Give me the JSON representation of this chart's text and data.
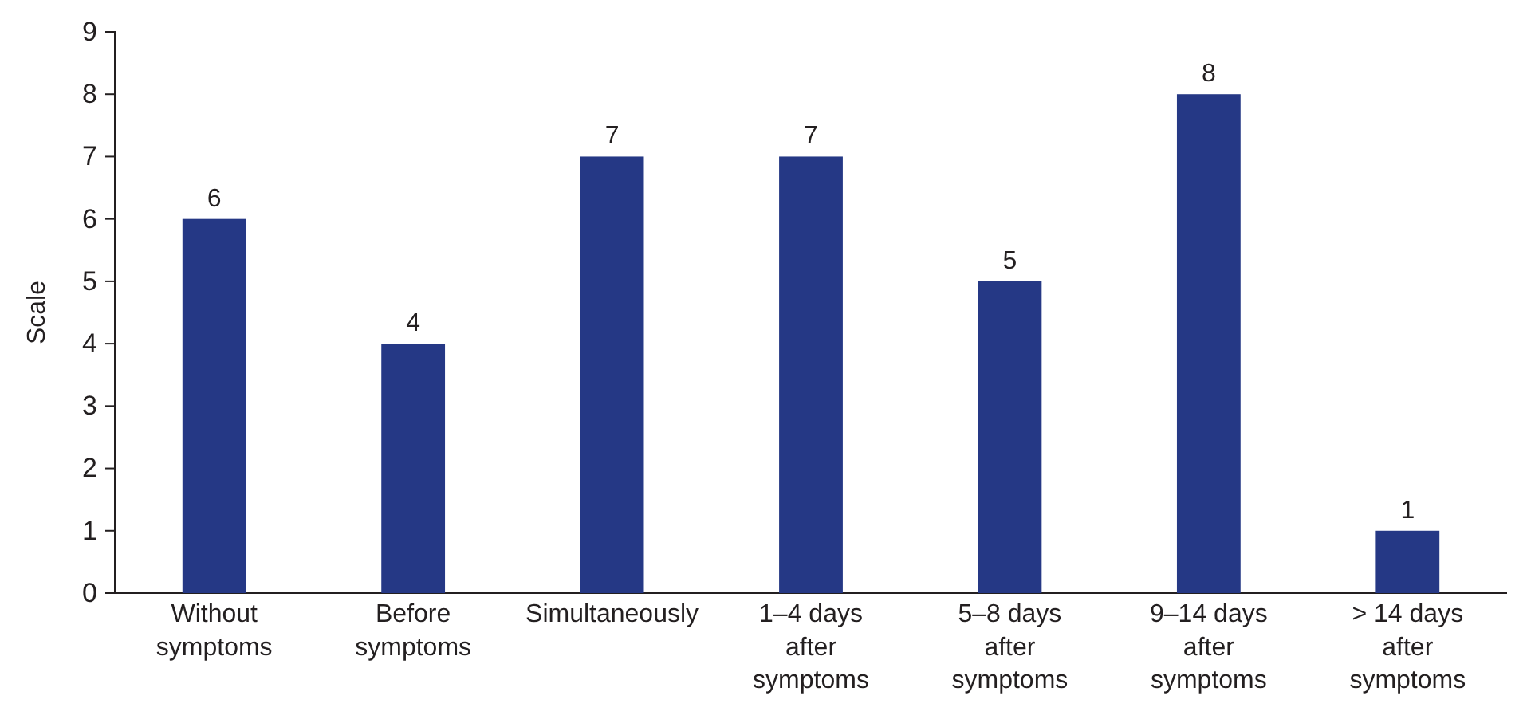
{
  "chart_data": {
    "type": "bar",
    "ylabel": "Scale",
    "categories": [
      "Without symptoms",
      "Before symptoms",
      "Simultaneously",
      "1–4 days after symptoms",
      "5–8 days after symptoms",
      "9–14 days after symptoms",
      "> 14 days after symptoms"
    ],
    "values": [
      6,
      4,
      7,
      7,
      5,
      8,
      1
    ],
    "color": "#253885",
    "ylim": [
      0,
      9
    ],
    "yticks": [
      0,
      1,
      2,
      3,
      4,
      5,
      6,
      7,
      8,
      9
    ],
    "data_labels": true,
    "grid": false
  }
}
